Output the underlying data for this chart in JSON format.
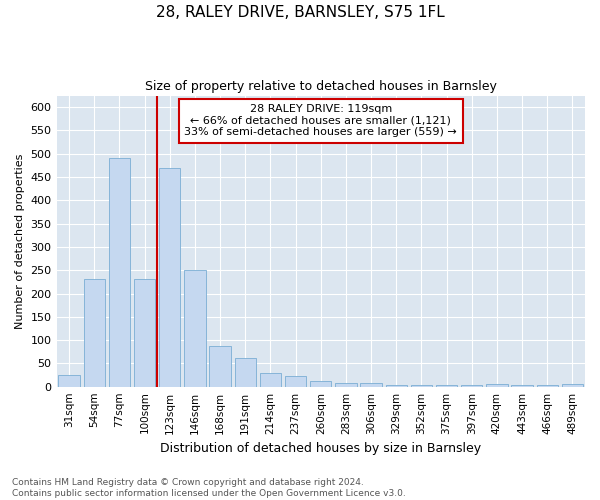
{
  "title": "28, RALEY DRIVE, BARNSLEY, S75 1FL",
  "subtitle": "Size of property relative to detached houses in Barnsley",
  "xlabel": "Distribution of detached houses by size in Barnsley",
  "ylabel": "Number of detached properties",
  "footer": "Contains HM Land Registry data © Crown copyright and database right 2024.\nContains public sector information licensed under the Open Government Licence v3.0.",
  "categories": [
    "31sqm",
    "54sqm",
    "77sqm",
    "100sqm",
    "123sqm",
    "146sqm",
    "168sqm",
    "191sqm",
    "214sqm",
    "237sqm",
    "260sqm",
    "283sqm",
    "306sqm",
    "329sqm",
    "352sqm",
    "375sqm",
    "397sqm",
    "420sqm",
    "443sqm",
    "466sqm",
    "489sqm"
  ],
  "values": [
    25,
    232,
    490,
    232,
    470,
    250,
    88,
    62,
    30,
    22,
    12,
    8,
    7,
    4,
    3,
    3,
    3,
    6,
    3,
    3,
    5
  ],
  "bar_color": "#c5d8f0",
  "bar_edge_color": "#7aadd4",
  "property_line_color": "#cc0000",
  "annotation_text": "28 RALEY DRIVE: 119sqm\n← 66% of detached houses are smaller (1,121)\n33% of semi-detached houses are larger (559) →",
  "annotation_box_facecolor": "#ffffff",
  "annotation_box_edgecolor": "#cc0000",
  "ylim": [
    0,
    625
  ],
  "yticks": [
    0,
    50,
    100,
    150,
    200,
    250,
    300,
    350,
    400,
    450,
    500,
    550,
    600
  ],
  "grid_color": "#d0d8e8",
  "plot_bg_color": "#dce6f0",
  "fig_bg_color": "#ffffff",
  "title_fontsize": 11,
  "subtitle_fontsize": 9,
  "xlabel_fontsize": 9,
  "ylabel_fontsize": 8,
  "tick_fontsize": 7.5,
  "ytick_fontsize": 8,
  "footer_fontsize": 6.5,
  "annotation_fontsize": 8
}
